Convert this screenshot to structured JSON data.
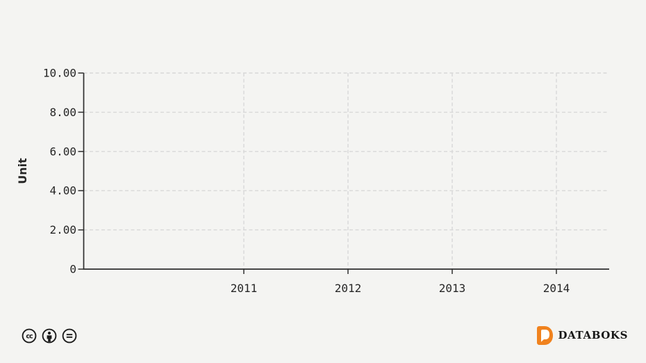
{
  "page": {
    "background": "#f4f4f2"
  },
  "chart_data": {
    "type": "line",
    "title": "",
    "xlabel": "",
    "ylabel": "Unit",
    "categories": [
      "2011",
      "2012",
      "2013",
      "2014"
    ],
    "series": [],
    "ylim": [
      0,
      10
    ],
    "yticks": [
      "10.00",
      "8.00",
      "6.00",
      "4.00",
      "2.00",
      "0"
    ],
    "grid": true,
    "grid_style": "dashed",
    "legend_position": "none"
  },
  "colors": {
    "background": "#f4f4f2",
    "grid": "#d8d8d8",
    "axis": "#2e2e2e",
    "tick_text": "#262626",
    "brand_orange": "#f0821e",
    "brand_text": "#171717",
    "icon_stroke": "#1d1d1d"
  },
  "footer": {
    "license_icons": [
      "cc-icon",
      "cc-by-icon",
      "cc-nd-icon"
    ],
    "brand_name": "DATABOKS"
  }
}
